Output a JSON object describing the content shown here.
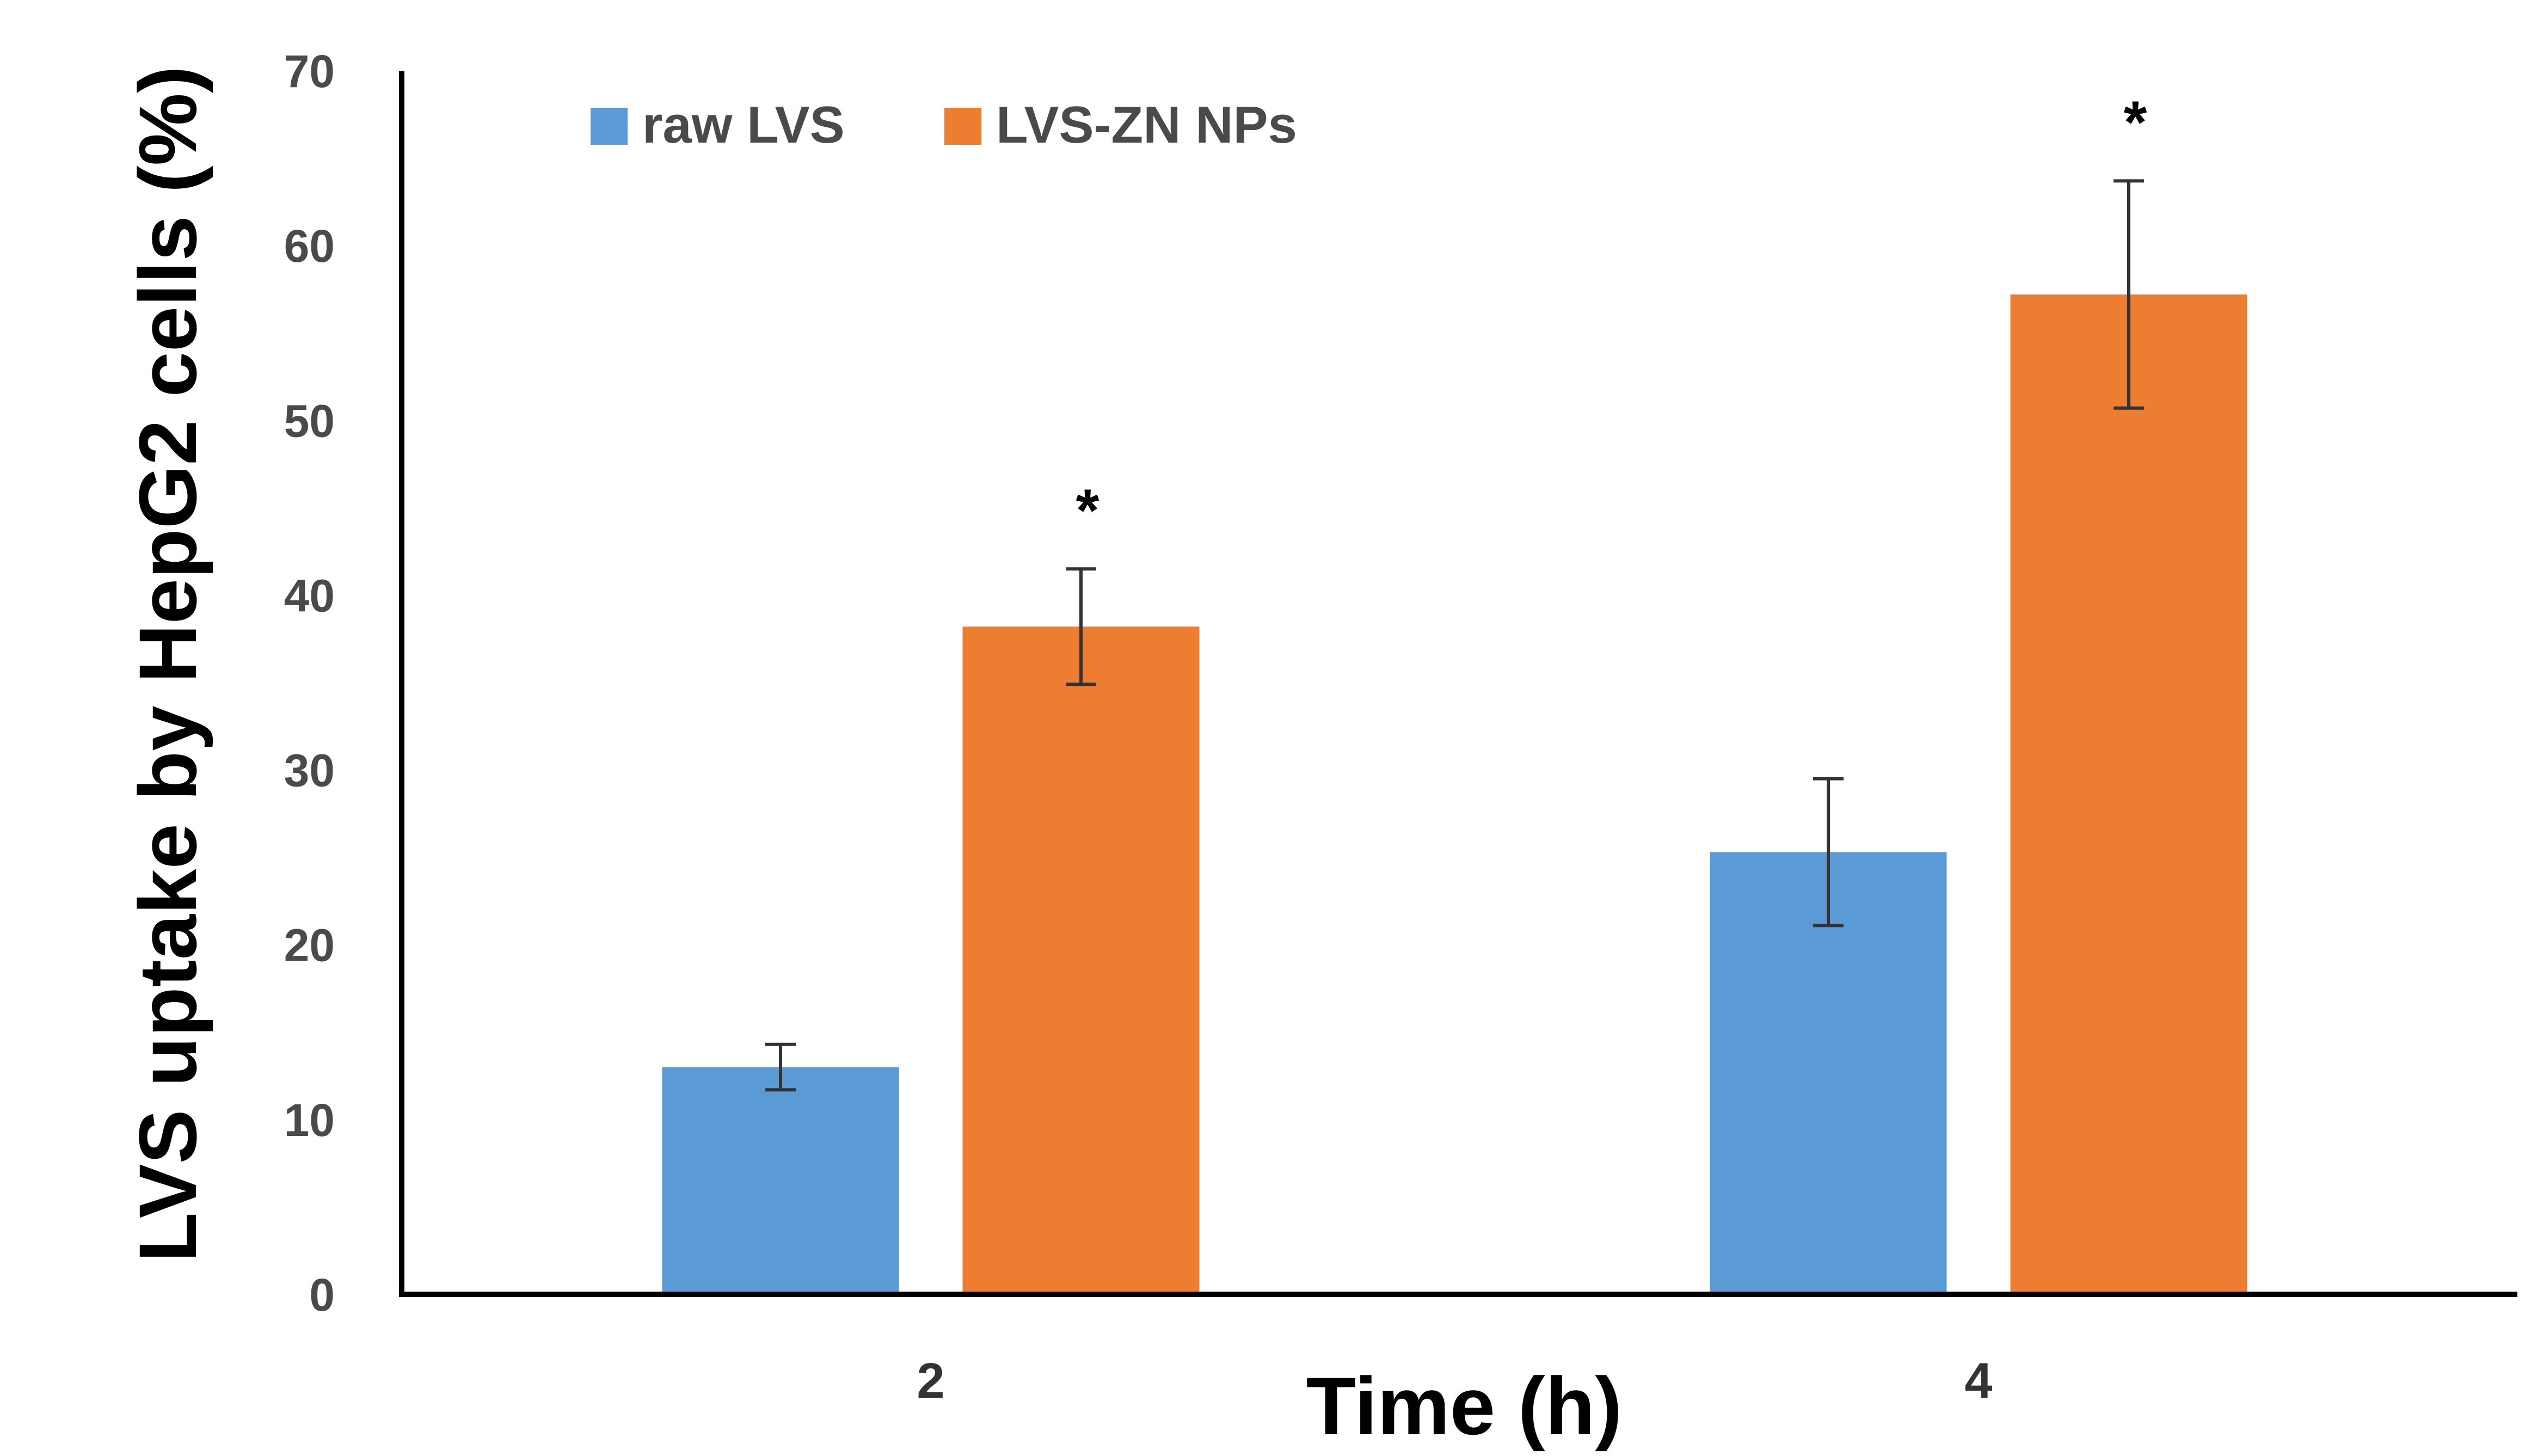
{
  "chart_data": {
    "type": "bar",
    "title": "",
    "xlabel": "Time (h)",
    "ylabel": "LVS uptake by HepG2 cells (%)",
    "ylim": [
      0,
      70
    ],
    "yticks": [
      "0",
      "10",
      "20",
      "30",
      "40",
      "50",
      "60",
      "70"
    ],
    "categories": [
      "2",
      "4"
    ],
    "series": [
      {
        "name": "raw LVS",
        "color": "#5B9BD5",
        "values": [
          13,
          25.3
        ],
        "errors": [
          1.3,
          4.2
        ]
      },
      {
        "name": "LVS-ZN NPs",
        "color": "#ED7D31",
        "values": [
          38.2,
          57.2
        ],
        "errors": [
          3.3,
          6.5
        ]
      }
    ],
    "annotations": [
      {
        "category": "2",
        "series": "LVS-ZN NPs",
        "text": "*"
      },
      {
        "category": "4",
        "series": "LVS-ZN NPs",
        "text": "*"
      }
    ],
    "grid": false,
    "legend": "top-left"
  }
}
